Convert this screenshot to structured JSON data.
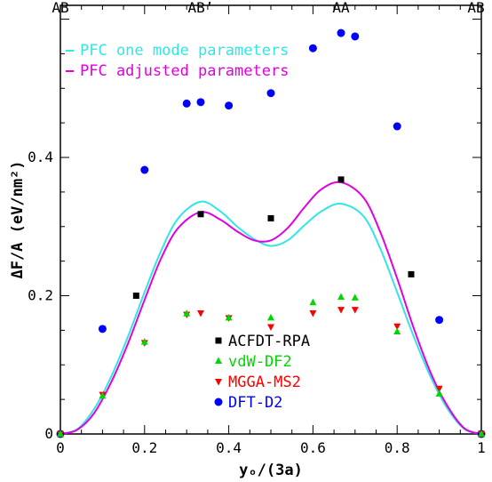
{
  "chart_data": {
    "type": "scatter",
    "xlabel": "yₒ/(3a)",
    "ylabel": "ΔF/A (eV/nm²)",
    "xlim": [
      0,
      1
    ],
    "ylim": [
      0,
      0.62
    ],
    "x_ticks": [
      0,
      0.2,
      0.4,
      0.6,
      0.8,
      1
    ],
    "x_tick_labels": [
      "0",
      "0.2",
      "0.4",
      "0.6",
      "0.8",
      "1"
    ],
    "y_ticks": [
      0,
      0.2,
      0.4
    ],
    "y_tick_labels": [
      "0",
      "0.2",
      "0.4"
    ],
    "top_labels": [
      {
        "x": 0,
        "text": "AB"
      },
      {
        "x": 0.3333,
        "text": "AB’"
      },
      {
        "x": 0.6667,
        "text": "AA"
      },
      {
        "x": 1,
        "text": "AB"
      }
    ],
    "curves": [
      {
        "name": "PFC one mode parameters",
        "color": "#33e5e5",
        "x": [
          0,
          0.04,
          0.08,
          0.12,
          0.16,
          0.2,
          0.24,
          0.28,
          0.3333,
          0.38,
          0.42,
          0.46,
          0.5,
          0.54,
          0.58,
          0.62,
          0.6667,
          0.72,
          0.76,
          0.8,
          0.84,
          0.88,
          0.92,
          0.96,
          1
        ],
        "y": [
          0,
          0.007,
          0.036,
          0.082,
          0.14,
          0.205,
          0.266,
          0.312,
          0.336,
          0.322,
          0.3,
          0.282,
          0.272,
          0.28,
          0.302,
          0.322,
          0.333,
          0.315,
          0.268,
          0.205,
          0.14,
          0.082,
          0.036,
          0.007,
          0
        ]
      },
      {
        "name": "PFC adjusted parameters",
        "color": "#e100e1",
        "x": [
          0,
          0.04,
          0.08,
          0.12,
          0.16,
          0.2,
          0.24,
          0.28,
          0.3333,
          0.38,
          0.42,
          0.46,
          0.5,
          0.54,
          0.58,
          0.62,
          0.6667,
          0.72,
          0.76,
          0.8,
          0.84,
          0.88,
          0.92,
          0.96,
          1
        ],
        "y": [
          0,
          0.006,
          0.03,
          0.074,
          0.13,
          0.194,
          0.255,
          0.298,
          0.321,
          0.31,
          0.293,
          0.28,
          0.28,
          0.298,
          0.328,
          0.354,
          0.364,
          0.342,
          0.292,
          0.225,
          0.152,
          0.088,
          0.04,
          0.008,
          0
        ]
      }
    ],
    "series": [
      {
        "name": "ACFDT-RPA",
        "marker": "square",
        "color": "#000000",
        "x": [
          0,
          0.18,
          0.3333,
          0.5,
          0.6667,
          0.8333,
          1
        ],
        "y": [
          0,
          0.2,
          0.318,
          0.312,
          0.368,
          0.231,
          0
        ]
      },
      {
        "name": "vdW-DF2",
        "marker": "triangle-up",
        "color": "#00d700",
        "x": [
          0,
          0.1,
          0.2,
          0.3,
          0.4,
          0.5,
          0.6,
          0.6667,
          0.7,
          0.8,
          0.9,
          1
        ],
        "y": [
          0,
          0.055,
          0.133,
          0.174,
          0.168,
          0.168,
          0.19,
          0.198,
          0.197,
          0.148,
          0.058,
          0
        ]
      },
      {
        "name": "MGGA-MS2",
        "marker": "triangle-down",
        "color": "#ff0000",
        "x": [
          0,
          0.1,
          0.2,
          0.3,
          0.3333,
          0.4,
          0.5,
          0.6,
          0.6667,
          0.7,
          0.8,
          0.9,
          1
        ],
        "y": [
          0,
          0.057,
          0.132,
          0.173,
          0.175,
          0.168,
          0.155,
          0.175,
          0.18,
          0.18,
          0.156,
          0.066,
          0
        ]
      },
      {
        "name": "DFT-D2",
        "marker": "circle",
        "color": "#0000ff",
        "x": [
          0,
          0.1,
          0.2,
          0.3,
          0.3333,
          0.4,
          0.5,
          0.6,
          0.6667,
          0.7,
          0.8,
          0.9,
          1
        ],
        "y": [
          0,
          0.152,
          0.382,
          0.478,
          0.48,
          0.475,
          0.493,
          0.558,
          0.58,
          0.575,
          0.445,
          0.165,
          0
        ]
      }
    ],
    "legend_curves_position": "top-left",
    "legend_points_position": "bottom-center",
    "grid": false
  }
}
